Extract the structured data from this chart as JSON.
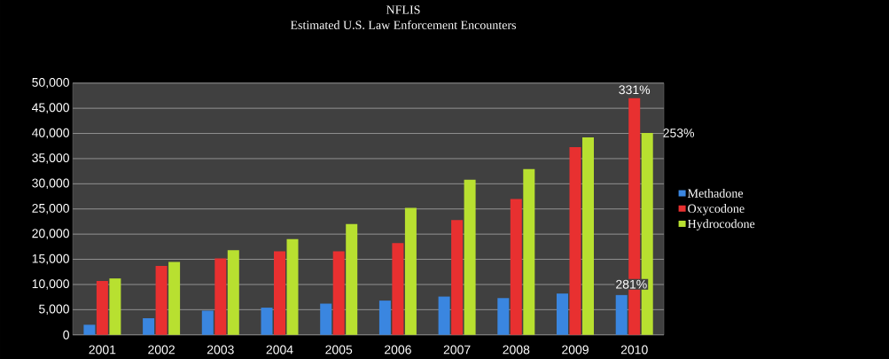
{
  "chart_data": {
    "type": "bar",
    "title": "NFLIS",
    "subtitle": "Estimated U.S. Law Enforcement Encounters",
    "categories": [
      "2001",
      "2002",
      "2003",
      "2004",
      "2005",
      "2006",
      "2007",
      "2008",
      "2009",
      "2010"
    ],
    "series": [
      {
        "name": "Methadone",
        "color": "#3a86e0",
        "values": [
          2000,
          3300,
          4800,
          5400,
          6200,
          6800,
          7600,
          7300,
          8200,
          7900
        ]
      },
      {
        "name": "Oxycodone",
        "color": "#e83030",
        "values": [
          10700,
          13700,
          15200,
          16600,
          16600,
          18200,
          22800,
          27000,
          37300,
          47000
        ]
      },
      {
        "name": "Hydrocodone",
        "color": "#b8e030",
        "values": [
          11200,
          14500,
          16800,
          19000,
          22000,
          25200,
          30800,
          32900,
          39200,
          40100
        ]
      }
    ],
    "ylim": [
      0,
      50000
    ],
    "yticks": [
      {
        "value": 0,
        "label": "0"
      },
      {
        "value": 5000,
        "label": "5,000"
      },
      {
        "value": 10000,
        "label": "10,000"
      },
      {
        "value": 15000,
        "label": "15,000"
      },
      {
        "value": 20000,
        "label": "20,000"
      },
      {
        "value": 25000,
        "label": "25,000"
      },
      {
        "value": 30000,
        "label": "30,000"
      },
      {
        "value": 35000,
        "label": "35,000"
      },
      {
        "value": 40000,
        "label": "40,000"
      },
      {
        "value": 45000,
        "label": "45,000"
      },
      {
        "value": 50000,
        "label": "50,000"
      }
    ],
    "annotations": [
      "331%",
      "253%",
      "281%"
    ],
    "grid": "y",
    "legend": "right"
  }
}
